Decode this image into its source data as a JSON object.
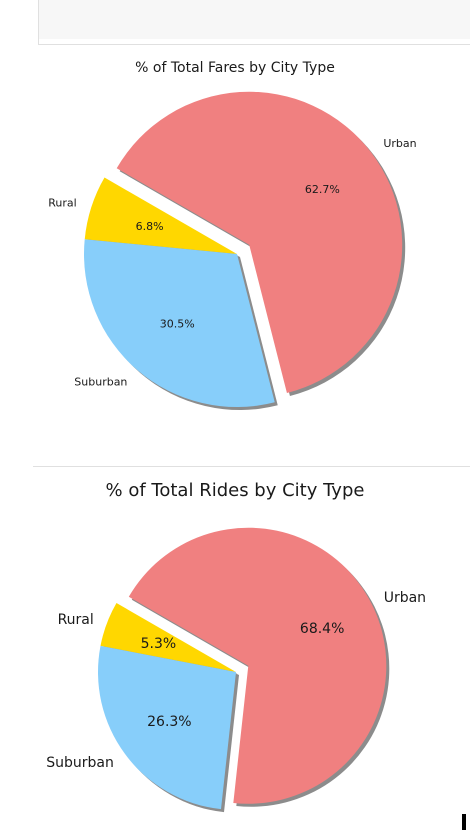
{
  "chart_data": [
    {
      "type": "pie",
      "title": "% of Total Fares by City Type",
      "categories": [
        "Rural",
        "Suburban",
        "Urban"
      ],
      "values": [
        6.8,
        30.5,
        62.7
      ],
      "value_labels": [
        "6.8%",
        "30.5%",
        "62.7%"
      ],
      "colors": [
        "#FFD700",
        "#87CEFA",
        "#F08080"
      ],
      "explode": [
        0,
        0,
        0.1
      ],
      "start_angle_deg": 150,
      "shadow": true
    },
    {
      "type": "pie",
      "title": "% of Total Rides by City Type",
      "categories": [
        "Rural",
        "Suburban",
        "Urban"
      ],
      "values": [
        5.3,
        26.3,
        68.4
      ],
      "value_labels": [
        "5.3%",
        "26.3%",
        "68.4%"
      ],
      "colors": [
        "#FFD700",
        "#87CEFA",
        "#F08080"
      ],
      "explode": [
        0,
        0,
        0.1
      ],
      "start_angle_deg": 150,
      "shadow": true
    }
  ]
}
